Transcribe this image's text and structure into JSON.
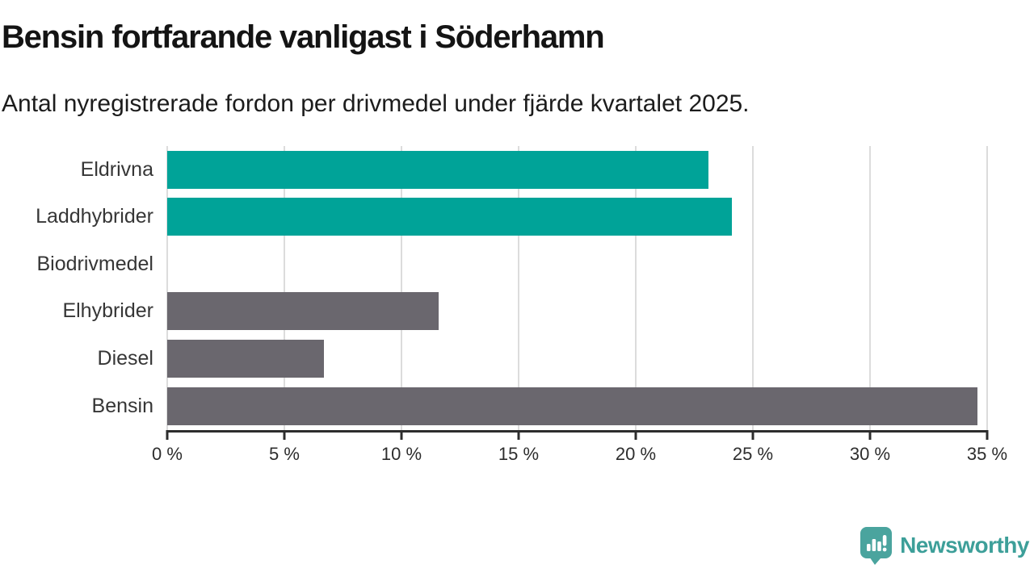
{
  "header": {
    "title": "Bensin fortfarande vanligast i Söderhamn",
    "subtitle": "Antal nyregistrerade fordon per drivmedel under fjärde kvartalet 2025."
  },
  "chart_data": {
    "type": "bar",
    "orientation": "horizontal",
    "title": "Bensin fortfarande vanligast i Söderhamn",
    "subtitle": "Antal nyregistrerade fordon per drivmedel under fjärde kvartalet 2025.",
    "categories": [
      "Eldrivna",
      "Laddhybrider",
      "Biodrivmedel",
      "Elhybrider",
      "Diesel",
      "Bensin"
    ],
    "values": [
      23.1,
      24.1,
      0,
      11.6,
      6.7,
      34.6
    ],
    "unit": "%",
    "xlim": [
      0,
      35
    ],
    "x_ticks": [
      0,
      5,
      10,
      15,
      20,
      25,
      30,
      35
    ],
    "x_tick_labels": [
      "0 %",
      "5 %",
      "10 %",
      "15 %",
      "20 %",
      "25 %",
      "30 %",
      "35 %"
    ],
    "grid": "vertical-light-gray",
    "legend": "none",
    "bar_colors": [
      "#00a398",
      "#00a398",
      "#6a676e",
      "#6a676e",
      "#6a676e",
      "#6a676e"
    ],
    "highlight_color": "#00a398",
    "default_color": "#6a676e"
  },
  "footer": {
    "brand_label": "Newsworthy",
    "logo_icon": "bar-chart-speech-bubble-icon",
    "logo_color": "#4aa49e",
    "brand_text_color": "#3d9f99"
  },
  "colors": {
    "background": "#ffffff",
    "title_text": "#141414",
    "subtitle_text": "#1c1c1c",
    "category_label_text": "#363636",
    "tick_label_text": "#2d2d2d",
    "gridline": "#dcdcdc",
    "axis_line": "#2d2d2d"
  }
}
